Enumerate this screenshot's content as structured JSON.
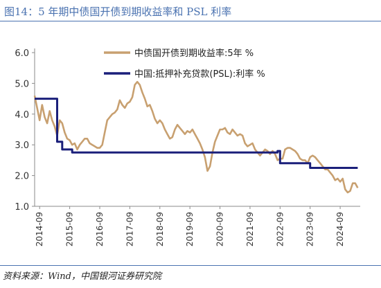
{
  "title": "图14：5 年期中债国开债到期收益率和 PSL 利率",
  "source": "资料来源：Wind，中国银河证券研究院",
  "chart_data": {
    "type": "line",
    "ylim": [
      1.0,
      6.0
    ],
    "yticks": [
      "6.0",
      "5.0",
      "4.0",
      "3.0",
      "2.0",
      "1.0"
    ],
    "xticks": [
      "2014-09",
      "2015-09",
      "2016-09",
      "2017-09",
      "2018-09",
      "2019-09",
      "2020-09",
      "2021-09",
      "2022-09",
      "2023-09",
      "2024-09"
    ],
    "grid": false,
    "legend_position": "top-center",
    "series": [
      {
        "name": "中债国开债到期收益率:5年  %",
        "color": "#c8a070",
        "style": "line",
        "points": [
          [
            "2014-07",
            4.6
          ],
          [
            "2014-08",
            4.2
          ],
          [
            "2014-09",
            3.8
          ],
          [
            "2014-10",
            4.3
          ],
          [
            "2014-11",
            3.9
          ],
          [
            "2014-12",
            3.7
          ],
          [
            "2015-01",
            4.1
          ],
          [
            "2015-02",
            3.8
          ],
          [
            "2015-03",
            3.6
          ],
          [
            "2015-04",
            3.3
          ],
          [
            "2015-05",
            3.8
          ],
          [
            "2015-06",
            3.7
          ],
          [
            "2015-07",
            3.4
          ],
          [
            "2015-08",
            3.2
          ],
          [
            "2015-09",
            3.15
          ],
          [
            "2015-10",
            3.0
          ],
          [
            "2015-11",
            3.05
          ],
          [
            "2015-12",
            2.85
          ],
          [
            "2016-01",
            3.0
          ],
          [
            "2016-02",
            3.1
          ],
          [
            "2016-03",
            3.2
          ],
          [
            "2016-04",
            3.2
          ],
          [
            "2016-05",
            3.05
          ],
          [
            "2016-06",
            3.0
          ],
          [
            "2016-07",
            2.95
          ],
          [
            "2016-08",
            2.9
          ],
          [
            "2016-09",
            2.9
          ],
          [
            "2016-10",
            3.0
          ],
          [
            "2016-11",
            3.4
          ],
          [
            "2016-12",
            3.8
          ],
          [
            "2017-01",
            3.9
          ],
          [
            "2017-02",
            4.0
          ],
          [
            "2017-03",
            4.05
          ],
          [
            "2017-04",
            4.15
          ],
          [
            "2017-05",
            4.45
          ],
          [
            "2017-06",
            4.3
          ],
          [
            "2017-07",
            4.2
          ],
          [
            "2017-08",
            4.35
          ],
          [
            "2017-09",
            4.4
          ],
          [
            "2017-10",
            4.55
          ],
          [
            "2017-11",
            4.95
          ],
          [
            "2017-12",
            5.05
          ],
          [
            "2018-01",
            4.95
          ],
          [
            "2018-02",
            4.7
          ],
          [
            "2018-03",
            4.5
          ],
          [
            "2018-04",
            4.25
          ],
          [
            "2018-05",
            4.3
          ],
          [
            "2018-06",
            4.1
          ],
          [
            "2018-07",
            3.85
          ],
          [
            "2018-08",
            3.7
          ],
          [
            "2018-09",
            3.8
          ],
          [
            "2018-10",
            3.7
          ],
          [
            "2018-11",
            3.5
          ],
          [
            "2018-12",
            3.35
          ],
          [
            "2019-01",
            3.2
          ],
          [
            "2019-02",
            3.25
          ],
          [
            "2019-03",
            3.5
          ],
          [
            "2019-04",
            3.65
          ],
          [
            "2019-05",
            3.55
          ],
          [
            "2019-06",
            3.45
          ],
          [
            "2019-07",
            3.35
          ],
          [
            "2019-08",
            3.45
          ],
          [
            "2019-09",
            3.4
          ],
          [
            "2019-10",
            3.5
          ],
          [
            "2019-11",
            3.35
          ],
          [
            "2019-12",
            3.2
          ],
          [
            "2020-01",
            3.05
          ],
          [
            "2020-02",
            2.85
          ],
          [
            "2020-03",
            2.6
          ],
          [
            "2020-04",
            2.15
          ],
          [
            "2020-05",
            2.3
          ],
          [
            "2020-06",
            2.75
          ],
          [
            "2020-07",
            3.1
          ],
          [
            "2020-08",
            3.3
          ],
          [
            "2020-09",
            3.5
          ],
          [
            "2020-10",
            3.5
          ],
          [
            "2020-11",
            3.55
          ],
          [
            "2020-12",
            3.4
          ],
          [
            "2021-01",
            3.35
          ],
          [
            "2021-02",
            3.5
          ],
          [
            "2021-03",
            3.4
          ],
          [
            "2021-04",
            3.3
          ],
          [
            "2021-05",
            3.35
          ],
          [
            "2021-06",
            3.3
          ],
          [
            "2021-07",
            3.05
          ],
          [
            "2021-08",
            2.95
          ],
          [
            "2021-09",
            3.0
          ],
          [
            "2021-10",
            3.05
          ],
          [
            "2021-11",
            2.85
          ],
          [
            "2021-12",
            2.75
          ],
          [
            "2022-01",
            2.65
          ],
          [
            "2022-02",
            2.75
          ],
          [
            "2022-03",
            2.85
          ],
          [
            "2022-04",
            2.8
          ],
          [
            "2022-05",
            2.7
          ],
          [
            "2022-06",
            2.8
          ],
          [
            "2022-07",
            2.7
          ],
          [
            "2022-08",
            2.5
          ],
          [
            "2022-09",
            2.55
          ],
          [
            "2022-10",
            2.55
          ],
          [
            "2022-11",
            2.85
          ],
          [
            "2022-12",
            2.9
          ],
          [
            "2023-01",
            2.9
          ],
          [
            "2023-02",
            2.85
          ],
          [
            "2023-03",
            2.8
          ],
          [
            "2023-04",
            2.7
          ],
          [
            "2023-05",
            2.55
          ],
          [
            "2023-06",
            2.5
          ],
          [
            "2023-07",
            2.5
          ],
          [
            "2023-08",
            2.4
          ],
          [
            "2023-09",
            2.6
          ],
          [
            "2023-10",
            2.65
          ],
          [
            "2023-11",
            2.6
          ],
          [
            "2023-12",
            2.5
          ],
          [
            "2024-01",
            2.4
          ],
          [
            "2024-02",
            2.3
          ],
          [
            "2024-03",
            2.2
          ],
          [
            "2024-04",
            2.2
          ],
          [
            "2024-05",
            2.1
          ],
          [
            "2024-06",
            2.0
          ],
          [
            "2024-07",
            1.85
          ],
          [
            "2024-08",
            1.9
          ],
          [
            "2024-09",
            1.8
          ],
          [
            "2024-10",
            1.9
          ],
          [
            "2024-11",
            1.55
          ],
          [
            "2024-12",
            1.45
          ],
          [
            "2025-01",
            1.5
          ],
          [
            "2025-02",
            1.75
          ],
          [
            "2025-03",
            1.75
          ],
          [
            "2025-04",
            1.6
          ]
        ]
      },
      {
        "name": "中国:抵押补充贷款(PSL):利率  %",
        "color": "#1a1f7a",
        "style": "step",
        "points": [
          [
            "2014-07",
            4.5
          ],
          [
            "2015-04",
            4.5
          ],
          [
            "2015-04",
            3.1
          ],
          [
            "2015-06",
            3.1
          ],
          [
            "2015-06",
            2.85
          ],
          [
            "2015-10",
            2.85
          ],
          [
            "2015-10",
            2.75
          ],
          [
            "2022-08",
            2.75
          ],
          [
            "2022-08",
            2.8
          ],
          [
            "2022-09",
            2.8
          ],
          [
            "2022-09",
            2.4
          ],
          [
            "2023-09",
            2.4
          ],
          [
            "2023-09",
            2.25
          ],
          [
            "2025-04",
            2.25
          ]
        ]
      }
    ]
  }
}
